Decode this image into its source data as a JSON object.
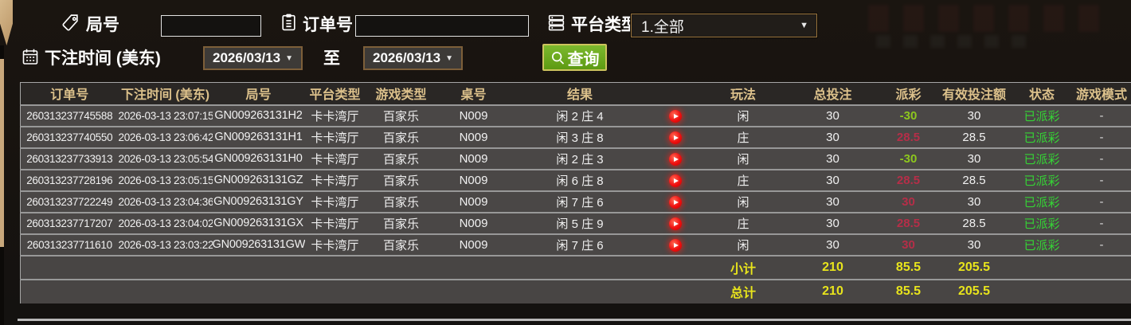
{
  "filters": {
    "game_no": {
      "label": "局号",
      "value": "",
      "icon": "tag-icon"
    },
    "order_no": {
      "label": "订单号",
      "value": "",
      "icon": "clipboard-icon"
    },
    "platform": {
      "label": "平台类型",
      "value": "1.全部",
      "icon": "list-icon"
    },
    "bet_time": {
      "label": "下注时间 (美东)",
      "icon": "calendar-icon"
    },
    "date_from": "2026/03/13",
    "to_label": "至",
    "date_to": "2026/03/13",
    "query_button": "查询"
  },
  "table": {
    "columns": [
      {
        "key": "order_no",
        "label": "订单号"
      },
      {
        "key": "bet_time",
        "label": "下注时间 (美东)"
      },
      {
        "key": "game_no",
        "label": "局号"
      },
      {
        "key": "platform",
        "label": "平台类型"
      },
      {
        "key": "game_type",
        "label": "游戏类型"
      },
      {
        "key": "table_no",
        "label": "桌号"
      },
      {
        "key": "result",
        "label": "结果"
      },
      {
        "key": "replay",
        "label": ""
      },
      {
        "key": "play_type",
        "label": "玩法"
      },
      {
        "key": "total_bet",
        "label": "总投注"
      },
      {
        "key": "payout",
        "label": "派彩"
      },
      {
        "key": "valid_bet",
        "label": "有效投注额"
      },
      {
        "key": "status",
        "label": "状态"
      },
      {
        "key": "game_mode",
        "label": "游戏模式"
      }
    ],
    "rows": [
      {
        "order_no": "260313237745588",
        "bet_time": "2026-03-13 23:07:15",
        "game_no": "GN009263131H2",
        "platform": "卡卡湾厅",
        "game_type": "百家乐",
        "table_no": "N009",
        "result": "闲 2 庄 4",
        "play_type": "闲",
        "total_bet": "30",
        "payout": "-30",
        "valid_bet": "30",
        "status": "已派彩",
        "game_mode": "-"
      },
      {
        "order_no": "260313237740550",
        "bet_time": "2026-03-13 23:06:42",
        "game_no": "GN009263131H1",
        "platform": "卡卡湾厅",
        "game_type": "百家乐",
        "table_no": "N009",
        "result": "闲 3 庄 8",
        "play_type": "庄",
        "total_bet": "30",
        "payout": "28.5",
        "valid_bet": "28.5",
        "status": "已派彩",
        "game_mode": "-"
      },
      {
        "order_no": "260313237733913",
        "bet_time": "2026-03-13 23:05:54",
        "game_no": "GN009263131H0",
        "platform": "卡卡湾厅",
        "game_type": "百家乐",
        "table_no": "N009",
        "result": "闲 2 庄 3",
        "play_type": "闲",
        "total_bet": "30",
        "payout": "-30",
        "valid_bet": "30",
        "status": "已派彩",
        "game_mode": "-"
      },
      {
        "order_no": "260313237728196",
        "bet_time": "2026-03-13 23:05:15",
        "game_no": "GN009263131GZ",
        "platform": "卡卡湾厅",
        "game_type": "百家乐",
        "table_no": "N009",
        "result": "闲 6 庄 8",
        "play_type": "庄",
        "total_bet": "30",
        "payout": "28.5",
        "valid_bet": "28.5",
        "status": "已派彩",
        "game_mode": "-"
      },
      {
        "order_no": "260313237722249",
        "bet_time": "2026-03-13 23:04:36",
        "game_no": "GN009263131GY",
        "platform": "卡卡湾厅",
        "game_type": "百家乐",
        "table_no": "N009",
        "result": "闲 7 庄 6",
        "play_type": "闲",
        "total_bet": "30",
        "payout": "30",
        "valid_bet": "30",
        "status": "已派彩",
        "game_mode": "-"
      },
      {
        "order_no": "260313237717207",
        "bet_time": "2026-03-13 23:04:02",
        "game_no": "GN009263131GX",
        "platform": "卡卡湾厅",
        "game_type": "百家乐",
        "table_no": "N009",
        "result": "闲 5 庄 9",
        "play_type": "庄",
        "total_bet": "30",
        "payout": "28.5",
        "valid_bet": "28.5",
        "status": "已派彩",
        "game_mode": "-"
      },
      {
        "order_no": "260313237711610",
        "bet_time": "2026-03-13 23:03:22",
        "game_no": "GN009263131GW",
        "platform": "卡卡湾厅",
        "game_type": "百家乐",
        "table_no": "N009",
        "result": "闲 7 庄 6",
        "play_type": "闲",
        "total_bet": "30",
        "payout": "30",
        "valid_bet": "30",
        "status": "已派彩",
        "game_mode": "-"
      }
    ],
    "subtotal": {
      "label": "小计",
      "total_bet": "210",
      "payout": "85.5",
      "valid_bet": "205.5"
    },
    "grand_total": {
      "label": "总计",
      "total_bet": "210",
      "payout": "85.5",
      "valid_bet": "205.5"
    }
  },
  "colors": {
    "payout_win": "#b52e48",
    "payout_loss": "#8dc71e",
    "status_paid": "#35d435",
    "totals_yellow": "#e8e41c",
    "header_gold": "#dcc18b",
    "accent_border": "#9a743c",
    "query_green": "#6aa81c",
    "strip_tan": "#c9a87c"
  }
}
